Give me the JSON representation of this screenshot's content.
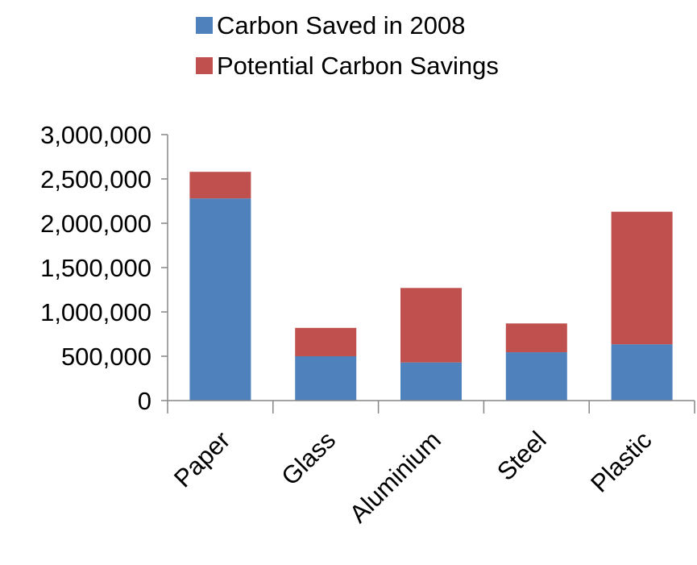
{
  "chart_data": {
    "type": "bar",
    "stacked": true,
    "title": "",
    "xlabel": "",
    "ylabel": "",
    "categories": [
      "Paper",
      "Glass",
      "Aluminium",
      "Steel",
      "Plastic"
    ],
    "series": [
      {
        "name": "Carbon Saved in 2008",
        "color": "#4f81bd",
        "values": [
          2280000,
          500000,
          430000,
          545000,
          635000
        ]
      },
      {
        "name": "Potential Carbon Savings",
        "color": "#c0504d",
        "values": [
          300000,
          320000,
          840000,
          325000,
          1495000
        ]
      }
    ],
    "ylim": [
      0,
      3000000
    ],
    "yticks": [
      {
        "value": 0,
        "label": "0"
      },
      {
        "value": 500000,
        "label": "500,000"
      },
      {
        "value": 1000000,
        "label": "1,000,000"
      },
      {
        "value": 1500000,
        "label": "1,500,000"
      },
      {
        "value": 2000000,
        "label": "2,000,000"
      },
      {
        "value": 2500000,
        "label": "2,500,000"
      },
      {
        "value": 3000000,
        "label": "3,000,000"
      }
    ],
    "grid": false,
    "legend_position": "top"
  }
}
